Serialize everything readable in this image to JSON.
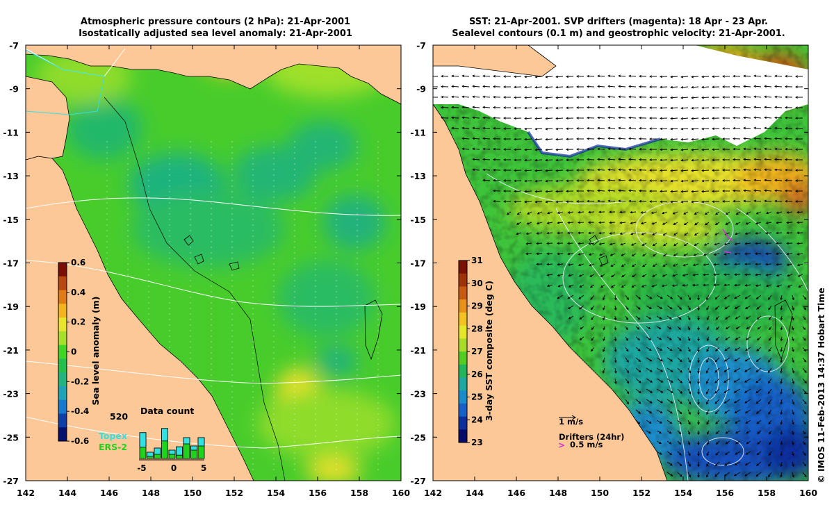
{
  "left_panel": {
    "title_line1": "Atmospheric pressure contours (2 hPa): 21-Apr-2001",
    "title_line2": "Isostatically adjusted sea level anomaly: 21-Apr-2001",
    "x_ticks": [
      "142",
      "144",
      "146",
      "148",
      "150",
      "152",
      "154",
      "156",
      "158",
      "160"
    ],
    "y_ticks": [
      "-7",
      "-9",
      "-11",
      "-13",
      "-15",
      "-17",
      "-19",
      "-21",
      "-23",
      "-25",
      "-27"
    ],
    "colorbar": {
      "label": "Sea level anomaly (m)",
      "ticks": [
        "0.6",
        "0.4",
        "0.2",
        "0",
        "-0.2",
        "-0.4",
        "-0.6"
      ],
      "colors": [
        "#7a0e06",
        "#b8460e",
        "#e07a12",
        "#f2b418",
        "#e8e42a",
        "#a6e02a",
        "#3fd624",
        "#24c04e",
        "#22b47e",
        "#1ea2b8",
        "#1778d2",
        "#0e3ea8",
        "#06106e"
      ]
    },
    "inset": {
      "title": "Data count",
      "max_label": "520",
      "x_ticks": [
        "-5",
        "0",
        "5"
      ],
      "legend": [
        {
          "label": "Topex",
          "color": "#33e0e0"
        },
        {
          "label": "ERS-2",
          "color": "#1ed21e"
        }
      ],
      "bars": [
        {
          "topex": 0.35,
          "ers": 0.62
        },
        {
          "topex": 0.1,
          "ers": 0.15
        },
        {
          "topex": 0.15,
          "ers": 0.25
        },
        {
          "topex": 0.3,
          "ers": 0.72
        },
        {
          "topex": 0.1,
          "ers": 0.2
        },
        {
          "topex": 0.2,
          "ers": 0.28
        },
        {
          "topex": 0.15,
          "ers": 0.5
        },
        {
          "topex": 0.1,
          "ers": 0.3
        },
        {
          "topex": 0.2,
          "ers": 0.5
        }
      ]
    }
  },
  "right_panel": {
    "title_line1": "SST: 21-Apr-2001. SVP drifters (magenta): 18 Apr - 23 Apr.",
    "title_line2": "Sealevel contours (0.1 m) and geostrophic velocity: 21-Apr-2001.",
    "x_ticks": [
      "142",
      "144",
      "146",
      "148",
      "150",
      "152",
      "154",
      "156",
      "158",
      "160"
    ],
    "y_ticks": [
      "-7",
      "-9",
      "-11",
      "-13",
      "-15",
      "-17",
      "-19",
      "-21",
      "-23",
      "-25",
      "-27"
    ],
    "colorbar": {
      "label": "3-day SST composite (deg C)",
      "ticks": [
        "31",
        "30",
        "29",
        "28",
        "27",
        "26",
        "25",
        "24",
        "23"
      ],
      "colors": [
        "#7a1006",
        "#a0320a",
        "#c85a10",
        "#e89018",
        "#f2c41e",
        "#e4e628",
        "#a8dc28",
        "#52cc22",
        "#22b45a",
        "#1ea6a0",
        "#1a8ccc",
        "#1660c8",
        "#0e2e9e",
        "#060c6a"
      ]
    },
    "velocity_scale_label": "1 m/s",
    "drifters_label": "Drifters (24hr)",
    "drifters_scale_label": "0.5 m/s",
    "drifter_color": "#d030d0"
  },
  "credit": "© IMOS 11-Feb-2013 14:37 Hobart Time",
  "colors": {
    "land": "#fdc898",
    "cloud": "#ffffff",
    "land_outline": "#000000",
    "contour_white": "#ffffff"
  }
}
